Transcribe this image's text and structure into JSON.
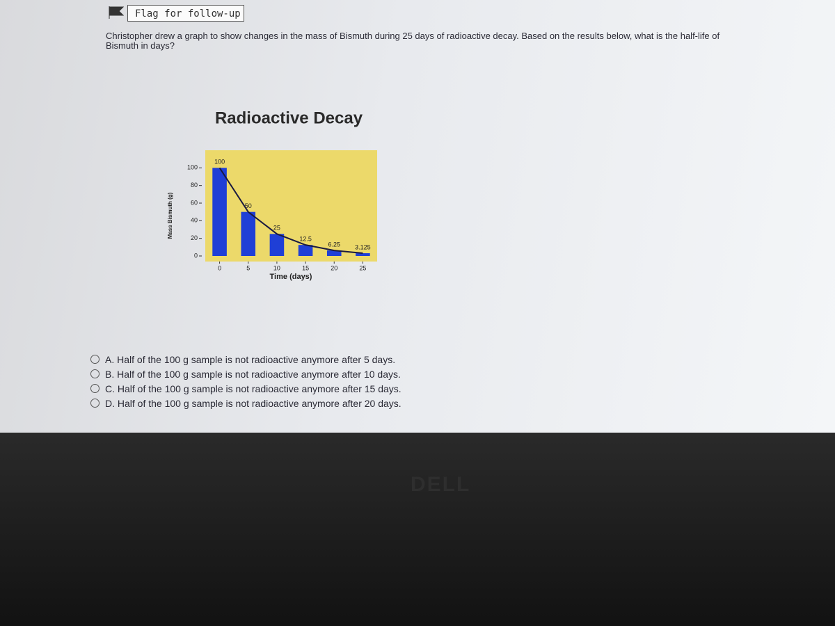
{
  "flag": "Flag for follow-up",
  "question": "Christopher drew a graph to show changes in the mass of Bismuth during 25 days of radioactive decay. Based on the results below, what is the half-life of Bismuth in days?",
  "chart_data": {
    "type": "bar",
    "title": "Radioactive Decay",
    "x_label": "Time (days)",
    "y_label": "Mass Bismuth (g)",
    "x": [
      0,
      5,
      10,
      15,
      20,
      25
    ],
    "values": [
      100,
      50,
      25,
      12.5,
      6.25,
      3.125
    ],
    "color": "#1f3fd6",
    "background": "#ecd96a",
    "curve_color": "#1a1a40",
    "xlim": [
      -2.5,
      27.5
    ],
    "xticks": [
      0,
      5,
      10,
      15,
      20,
      25
    ],
    "ylim": [
      0,
      120
    ],
    "yticks": [
      0,
      20,
      40,
      60,
      80,
      100
    ]
  },
  "options": [
    "A. Half of the 100 g sample is not radioactive anymore after 5 days.",
    "B. Half of the 100 g sample is not radioactive anymore after 10 days.",
    "C. Half of the 100 g sample is not radioactive anymore after 15 days.",
    "D. Half of the 100 g sample is not radioactive anymore after 20 days."
  ],
  "brand": "DELL"
}
